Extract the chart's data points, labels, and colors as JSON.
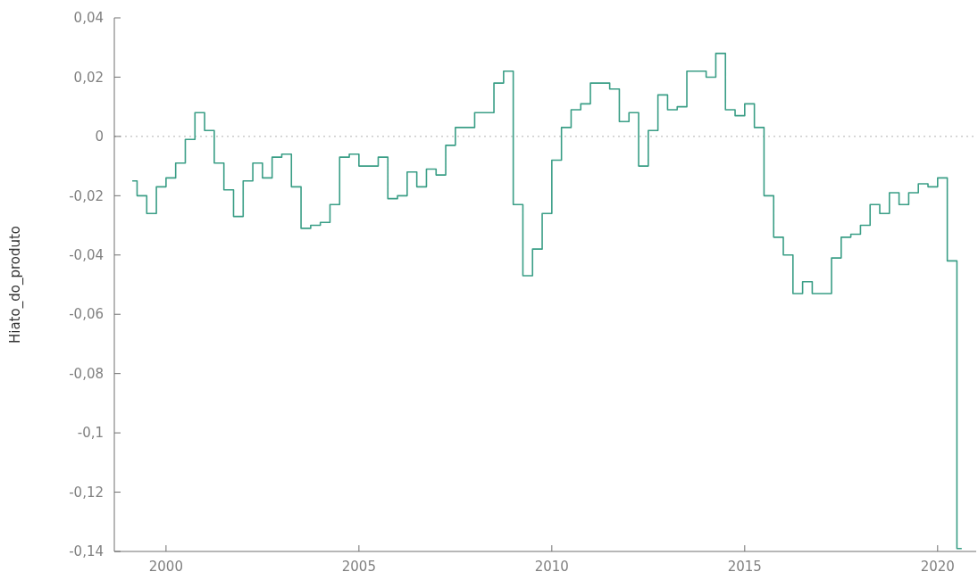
{
  "chart_data": {
    "type": "step",
    "ylabel": "Hiato_do_produto",
    "x": [
      1999.125,
      1999.375,
      1999.625,
      1999.875,
      2000.125,
      2000.375,
      2000.625,
      2000.875,
      2001.125,
      2001.375,
      2001.625,
      2001.875,
      2002.125,
      2002.375,
      2002.625,
      2002.875,
      2003.125,
      2003.375,
      2003.625,
      2003.875,
      2004.125,
      2004.375,
      2004.625,
      2004.875,
      2005.125,
      2005.375,
      2005.625,
      2005.875,
      2006.125,
      2006.375,
      2006.625,
      2006.875,
      2007.125,
      2007.375,
      2007.625,
      2007.875,
      2008.125,
      2008.375,
      2008.625,
      2008.875,
      2009.125,
      2009.375,
      2009.625,
      2009.875,
      2010.125,
      2010.375,
      2010.625,
      2010.875,
      2011.125,
      2011.375,
      2011.625,
      2011.875,
      2012.125,
      2012.375,
      2012.625,
      2012.875,
      2013.125,
      2013.375,
      2013.625,
      2013.875,
      2014.125,
      2014.375,
      2014.625,
      2014.875,
      2015.125,
      2015.375,
      2015.625,
      2015.875,
      2016.125,
      2016.375,
      2016.625,
      2016.875,
      2017.125,
      2017.375,
      2017.625,
      2017.875,
      2018.125,
      2018.375,
      2018.625,
      2018.875,
      2019.125,
      2019.375,
      2019.625,
      2019.875,
      2020.125,
      2020.375,
      2020.625
    ],
    "series": [
      {
        "color": "#3a9e86",
        "values": [
          -0.015,
          -0.02,
          -0.026,
          -0.017,
          -0.014,
          -0.009,
          -0.001,
          0.008,
          0.002,
          -0.009,
          -0.018,
          -0.027,
          -0.015,
          -0.009,
          -0.014,
          -0.007,
          -0.006,
          -0.017,
          -0.031,
          -0.03,
          -0.029,
          -0.023,
          -0.007,
          -0.006,
          -0.01,
          -0.01,
          -0.007,
          -0.021,
          -0.02,
          -0.012,
          -0.017,
          -0.011,
          -0.013,
          -0.003,
          0.003,
          0.003,
          0.008,
          0.008,
          0.018,
          0.022,
          -0.023,
          -0.047,
          -0.038,
          -0.026,
          -0.008,
          0.003,
          0.009,
          0.011,
          0.018,
          0.018,
          0.016,
          0.005,
          0.008,
          -0.01,
          0.002,
          0.014,
          0.009,
          0.01,
          0.022,
          0.022,
          0.02,
          0.028,
          0.009,
          0.007,
          0.011,
          0.003,
          -0.02,
          -0.034,
          -0.04,
          -0.053,
          -0.049,
          -0.053,
          -0.053,
          -0.041,
          -0.034,
          -0.033,
          -0.03,
          -0.023,
          -0.026,
          -0.019,
          -0.023,
          -0.019,
          -0.016,
          -0.017,
          -0.014,
          -0.042,
          -0.139
        ]
      }
    ],
    "xlim": [
      1998.66,
      2021.0
    ],
    "xticks": [
      2000,
      2005,
      2010,
      2015,
      2020
    ],
    "ylim": [
      -0.14,
      0.04
    ],
    "yticks": [
      {
        "value": 0.04,
        "label": "0,04"
      },
      {
        "value": 0.02,
        "label": "0,02"
      },
      0,
      {
        "value": -0.02,
        "label": "-0,02"
      },
      {
        "value": -0.04,
        "label": "-0,04"
      },
      {
        "value": -0.06,
        "label": "-0,06"
      },
      {
        "value": -0.08,
        "label": "-0,08"
      },
      {
        "value": -0.1,
        "label": "-0,1"
      },
      {
        "value": -0.12,
        "label": "-0,12"
      },
      {
        "value": -0.14,
        "label": "-0,14"
      }
    ],
    "ref_lines": [
      {
        "axis": "y",
        "value": 0,
        "color": "#b0b0b0",
        "line_style": "dotted"
      }
    ],
    "grid": false
  }
}
